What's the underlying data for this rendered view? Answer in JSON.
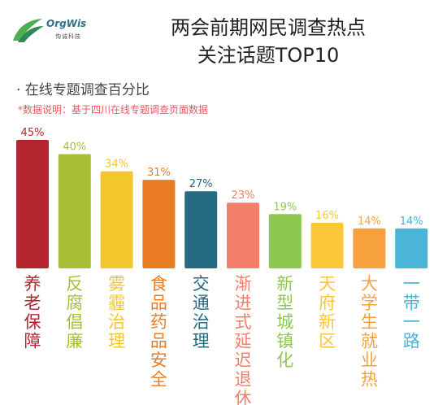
{
  "header": {
    "logo_name": "OrgWis",
    "logo_sub": "恂诚科技",
    "title_line1": "两会前期网民调查热点",
    "title_line2": "关注话题TOP10",
    "subtitle": "· 在线专题调查百分比",
    "note": "*数据说明：基于四川在线专题调查页面数据"
  },
  "chart_data": {
    "type": "bar",
    "categories": [
      "养老保障",
      "反腐倡廉",
      "雾霾治理",
      "食品药品安全",
      "交通治理",
      "渐进式延迟退休",
      "新型城镇化",
      "天府新区",
      "大学生就业热",
      "一带一路"
    ],
    "values": [
      45,
      40,
      34,
      31,
      27,
      23,
      19,
      16,
      14,
      14
    ],
    "value_labels": [
      "45%",
      "40%",
      "34%",
      "31%",
      "27%",
      "23%",
      "19%",
      "16%",
      "14%",
      "14%"
    ],
    "colors": [
      "#b42530",
      "#a8bf35",
      "#f3c72b",
      "#ea7d24",
      "#246a80",
      "#f47e68",
      "#8ec94f",
      "#fbc638",
      "#f6a13d",
      "#4ab4d9"
    ],
    "title": "",
    "xlabel": "",
    "ylabel": "",
    "ylim": [
      0,
      45
    ],
    "grid": false,
    "legend": "none"
  }
}
